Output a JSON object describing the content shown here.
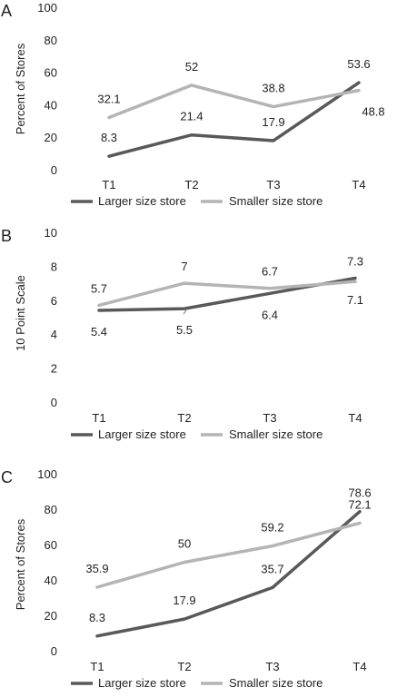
{
  "chart_data": [
    {
      "panel": "A",
      "type": "line",
      "categories": [
        "T1",
        "T2",
        "T3",
        "T4"
      ],
      "ylabel": "Percent of Stores",
      "ylim": [
        0,
        100
      ],
      "yticks": [
        0,
        20,
        40,
        60,
        80,
        100
      ],
      "grid": false,
      "legend_position": "bottom",
      "series": [
        {
          "name": "Larger size store",
          "values": [
            8.3,
            21.4,
            17.9,
            53.6
          ],
          "labels": [
            "8.3",
            "21.4",
            "17.9",
            "53.6"
          ],
          "color": "#595959"
        },
        {
          "name": "Smaller size store",
          "values": [
            32.1,
            52,
            38.8,
            48.8
          ],
          "labels": [
            "32.1",
            "52",
            "38.8",
            "48.8"
          ],
          "color": "#b4b4b4"
        }
      ]
    },
    {
      "panel": "B",
      "type": "line",
      "categories": [
        "T1",
        "T2",
        "T3",
        "T4"
      ],
      "ylabel": "10 Point Scale",
      "ylim": [
        0,
        10
      ],
      "yticks": [
        0,
        2,
        4,
        6,
        8,
        10
      ],
      "grid": false,
      "legend_position": "bottom",
      "series": [
        {
          "name": "Larger size store",
          "values": [
            5.4,
            5.5,
            6.4,
            7.3
          ],
          "labels": [
            "5.4",
            "5.5",
            "6.4",
            "7.3"
          ],
          "color": "#595959"
        },
        {
          "name": "Smaller size store",
          "values": [
            5.7,
            7,
            6.7,
            7.1
          ],
          "labels": [
            "5.7",
            "7",
            "6.7",
            "7.1"
          ],
          "color": "#b4b4b4"
        }
      ]
    },
    {
      "panel": "C",
      "type": "line",
      "categories": [
        "T1",
        "T2",
        "T3",
        "T4"
      ],
      "ylabel": "Percent of Stores",
      "ylim": [
        0,
        100
      ],
      "yticks": [
        0,
        20,
        40,
        60,
        80,
        100
      ],
      "grid": false,
      "legend_position": "bottom",
      "series": [
        {
          "name": "Larger size store",
          "values": [
            8.3,
            17.9,
            35.7,
            78.6
          ],
          "labels": [
            "8.3",
            "17.9",
            "35.7",
            "78.6"
          ],
          "color": "#595959"
        },
        {
          "name": "Smaller size store",
          "values": [
            35.9,
            50,
            59.2,
            72.1
          ],
          "labels": [
            "35.9",
            "50",
            "59.2",
            "72.1"
          ],
          "color": "#b4b4b4"
        }
      ]
    }
  ]
}
